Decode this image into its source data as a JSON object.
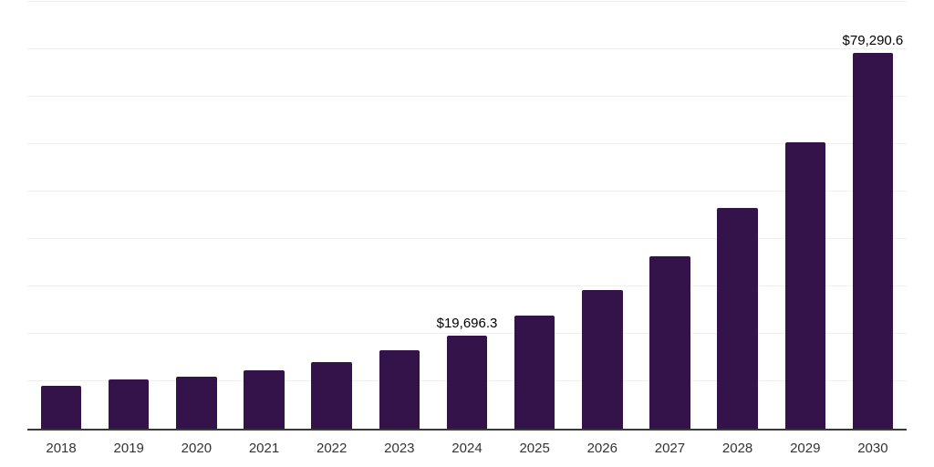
{
  "chart_data": {
    "type": "bar",
    "title": "",
    "xlabel": "",
    "ylabel": "",
    "categories": [
      "2018",
      "2019",
      "2020",
      "2021",
      "2022",
      "2023",
      "2024",
      "2025",
      "2026",
      "2027",
      "2028",
      "2029",
      "2030"
    ],
    "values": [
      9000,
      10400,
      11050,
      12400,
      14100,
      16500,
      19696.3,
      23900,
      29200,
      36300,
      46500,
      60400,
      79290.6
    ],
    "data_labels": [
      "",
      "",
      "",
      "",
      "",
      "",
      "$19,696.3",
      "",
      "",
      "",
      "",
      "",
      "$79,290.6"
    ],
    "ylim": [
      0,
      90000
    ],
    "gridline_step": 10000,
    "grid": "horizontal",
    "legend": "none",
    "colors": {
      "bar": "#331349",
      "axis_line": "#3a3a3a",
      "gridline": "#f0f0f0",
      "tick_label": "#333333",
      "data_label": "#000000",
      "background": "#ffffff"
    }
  }
}
